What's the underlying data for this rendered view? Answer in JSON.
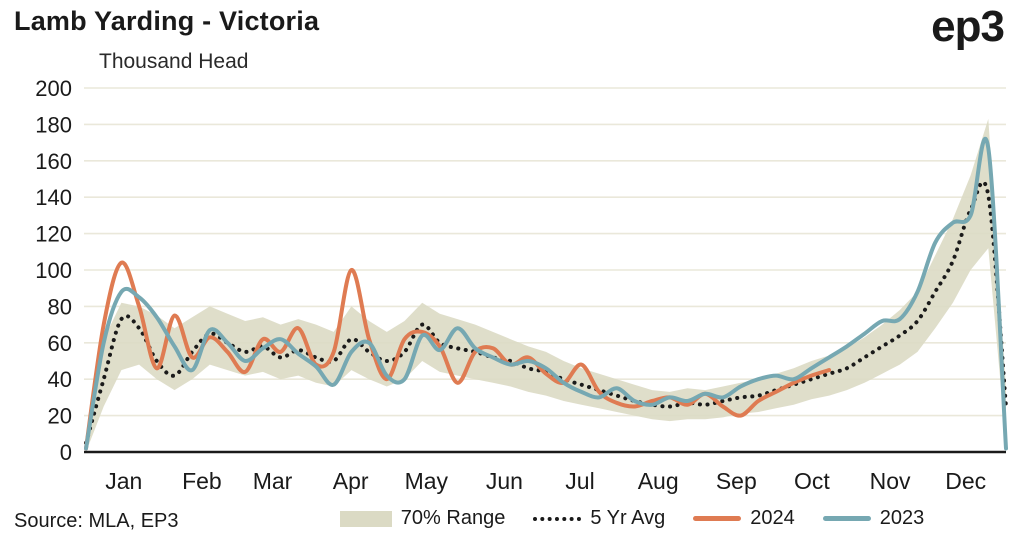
{
  "header": {
    "title": "Lamb Yarding - Victoria",
    "logo": "ep3",
    "subtitle": "Thousand Head"
  },
  "legend": {
    "items": [
      {
        "id": "range",
        "label": "70% Range",
        "color": "#dbdac4"
      },
      {
        "id": "avg",
        "label": "5 Yr Avg",
        "color": "#1a1a1a"
      },
      {
        "id": "y2024",
        "label": "2024",
        "color": "#df7b52"
      },
      {
        "id": "y2023",
        "label": "2023",
        "color": "#76a8b2"
      }
    ]
  },
  "footer": {
    "source": "Source: MLA, EP3"
  },
  "chart_data": {
    "type": "line",
    "title": "Lamb Yarding - Victoria",
    "ylabel": "Thousand Head",
    "frequency": "weekly",
    "ylim": [
      0,
      200
    ],
    "ytick_step": 20,
    "grid": "horizontal",
    "legend_position": "bottom",
    "x_months": [
      "Jan",
      "Feb",
      "Mar",
      "Apr",
      "May",
      "Jun",
      "Jul",
      "Aug",
      "Sep",
      "Oct",
      "Nov",
      "Dec"
    ],
    "series": [
      {
        "name": "5 Yr Avg",
        "style": "dotted",
        "color": "#1a1a1a",
        "values": [
          5,
          40,
          73,
          68,
          50,
          42,
          55,
          65,
          60,
          55,
          58,
          52,
          56,
          52,
          50,
          62,
          55,
          50,
          55,
          70,
          60,
          57,
          55,
          52,
          50,
          46,
          44,
          40,
          37,
          34,
          31,
          28,
          26,
          25,
          27,
          26,
          28,
          30,
          31,
          34,
          37,
          40,
          43,
          46,
          52,
          58,
          64,
          72,
          88,
          105,
          133,
          141,
          25
        ]
      },
      {
        "name": "2024",
        "style": "solid",
        "color": "#df7b52",
        "values": [
          2,
          70,
          104,
          80,
          46,
          75,
          52,
          63,
          55,
          44,
          62,
          55,
          68,
          48,
          55,
          100,
          62,
          40,
          62,
          66,
          58,
          38,
          55,
          57,
          48,
          52,
          43,
          38,
          48,
          33,
          27,
          25,
          28,
          30,
          26,
          32,
          25,
          20,
          28,
          33,
          38,
          42,
          45,
          null,
          null,
          null,
          null,
          null,
          null,
          null,
          null,
          null,
          null
        ]
      },
      {
        "name": "2023",
        "style": "solid",
        "color": "#76a8b2",
        "values": [
          2,
          60,
          88,
          85,
          74,
          58,
          45,
          67,
          60,
          50,
          57,
          62,
          54,
          47,
          37,
          55,
          60,
          42,
          40,
          64,
          56,
          68,
          57,
          52,
          48,
          50,
          46,
          38,
          33,
          30,
          35,
          28,
          26,
          30,
          28,
          32,
          30,
          36,
          40,
          42,
          40,
          46,
          52,
          58,
          65,
          72,
          73,
          88,
          115,
          126,
          130,
          167,
          2
        ]
      }
    ],
    "band": {
      "name": "70% Range",
      "color": "#dbdac4",
      "lower": [
        0,
        25,
        45,
        48,
        40,
        34,
        40,
        48,
        45,
        42,
        44,
        40,
        42,
        38,
        36,
        45,
        40,
        36,
        40,
        50,
        44,
        42,
        40,
        38,
        36,
        33,
        31,
        28,
        26,
        24,
        22,
        20,
        18,
        17,
        18,
        18,
        19,
        21,
        22,
        24,
        26,
        29,
        31,
        34,
        38,
        43,
        48,
        55,
        68,
        82,
        100,
        112,
        5
      ],
      "upper": [
        6,
        62,
        82,
        80,
        75,
        68,
        74,
        80,
        76,
        72,
        74,
        70,
        73,
        70,
        66,
        80,
        72,
        66,
        72,
        82,
        76,
        73,
        70,
        66,
        62,
        58,
        55,
        50,
        46,
        43,
        40,
        37,
        34,
        33,
        35,
        34,
        36,
        38,
        40,
        43,
        46,
        50,
        53,
        57,
        63,
        70,
        78,
        88,
        108,
        128,
        152,
        183,
        35
      ]
    }
  }
}
